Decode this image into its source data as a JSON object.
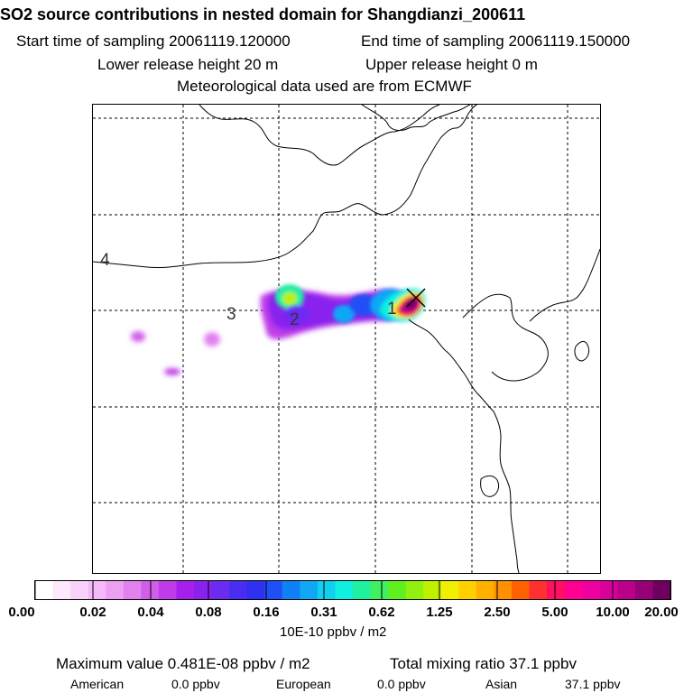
{
  "title": "SO2 source contributions in nested domain for Shangdianzi_200611",
  "sampling": {
    "start": "Start time of sampling 20061119.120000",
    "end": "End time of sampling 20061119.150000"
  },
  "release": {
    "lower": "Lower release height   20 m",
    "upper": "Upper release height    0 m"
  },
  "met": "Meteorological data used are from ECMWF",
  "map_labels": [
    "1",
    "2",
    "3",
    "4"
  ],
  "colorbar": {
    "ticks": [
      "0.00",
      "0.02",
      "0.04",
      "0.08",
      "0.16",
      "0.31",
      "0.62",
      "1.25",
      "2.50",
      "5.00",
      "10.00",
      "20.00"
    ],
    "units": "10E-10 ppbv / m2",
    "colors": [
      "#ffffff",
      "#fde8fd",
      "#f9d2f9",
      "#f4b9f6",
      "#eda0f2",
      "#e081ee",
      "#d05eea",
      "#c03ce8",
      "#a61fec",
      "#8a22ee",
      "#6c2cf0",
      "#4b2cf1",
      "#3030f0",
      "#2050f5",
      "#1080f5",
      "#10a8f5",
      "#10d0f0",
      "#10f0e0",
      "#20f0a0",
      "#40f060",
      "#60f020",
      "#90f010",
      "#c0f000",
      "#f0f000",
      "#ffd000",
      "#ffb000",
      "#ff9000",
      "#ff6000",
      "#ff3030",
      "#ff1060",
      "#ff0090",
      "#f000a0",
      "#d8009a",
      "#b8008a",
      "#980078",
      "#700060"
    ],
    "nticks": 12
  },
  "stats": {
    "max": "Maximum value  0.481E-08 ppbv / m2",
    "total": "Total mixing ratio     37.1 ppbv"
  },
  "regions": [
    {
      "name": "American",
      "value": "0.0 ppbv"
    },
    {
      "name": "European",
      "value": "0.0 ppbv"
    },
    {
      "name": "Asian",
      "value": "37.1 ppbv"
    }
  ]
}
